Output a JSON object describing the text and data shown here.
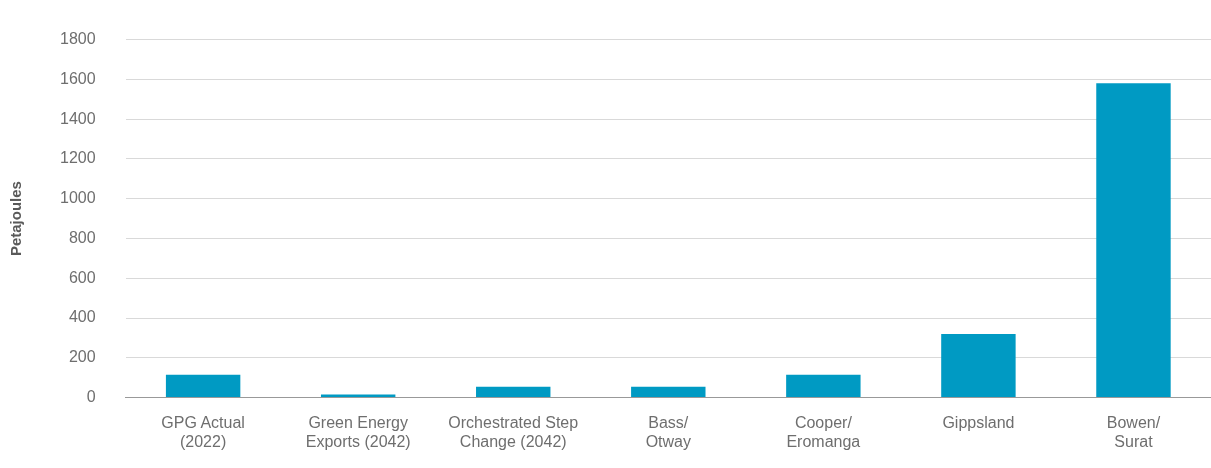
{
  "chart_data": {
    "type": "bar",
    "ylabel": "Petajoules",
    "categories": [
      "GPG Actual\n(2022)",
      "Green Energy\nExports (2042)",
      "Orchestrated Step\nChange (2042)",
      "Bass/\nOtway",
      "Cooper/\nEromanga",
      "Gippsland",
      "Bowen/\nSurat"
    ],
    "values": [
      115,
      15,
      55,
      55,
      115,
      320,
      1580
    ],
    "color": "#009ac3",
    "ylim": [
      0,
      1800
    ],
    "yticks": [
      0,
      200,
      400,
      600,
      800,
      1000,
      1200,
      1400,
      1600,
      1800
    ],
    "grid": "y"
  }
}
